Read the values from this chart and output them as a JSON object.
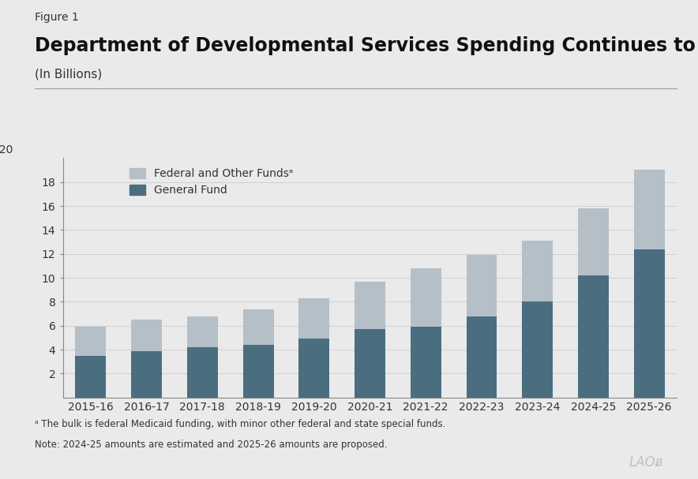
{
  "figure_label": "Figure 1",
  "title": "Department of Developmental Services Spending Continues to Grow Rapidly",
  "subtitle": "(In Billions)",
  "categories": [
    "2015-16",
    "2016-17",
    "2017-18",
    "2018-19",
    "2019-20",
    "2020-21",
    "2021-22",
    "2022-23",
    "2023-24",
    "2024-25",
    "2025-26"
  ],
  "general_fund": [
    3.5,
    3.9,
    4.2,
    4.4,
    4.9,
    5.7,
    5.9,
    6.8,
    8.0,
    10.2,
    12.4
  ],
  "total": [
    5.9,
    6.5,
    6.8,
    7.4,
    8.3,
    9.7,
    10.8,
    11.9,
    13.1,
    15.8,
    19.0
  ],
  "general_fund_color": "#4a6e80",
  "federal_funds_color": "#b5bfc8",
  "background_color": "#eaeaea",
  "ylim": [
    0,
    20
  ],
  "yticks": [
    2,
    4,
    6,
    8,
    10,
    12,
    14,
    16,
    18
  ],
  "legend_federal": "Federal and Other Fundsᵃ",
  "legend_general": "General Fund",
  "footnote_a": "ᵃ The bulk is federal Medicaid funding, with minor other federal and state special funds.",
  "footnote_note": "Note: 2024-25 amounts are estimated and 2025-26 amounts are proposed.",
  "watermark": "LAOᴃ",
  "title_fontsize": 17,
  "subtitle_fontsize": 11,
  "figure_label_fontsize": 10,
  "axis_fontsize": 10,
  "legend_fontsize": 10,
  "footnote_fontsize": 8.5,
  "watermark_fontsize": 12
}
